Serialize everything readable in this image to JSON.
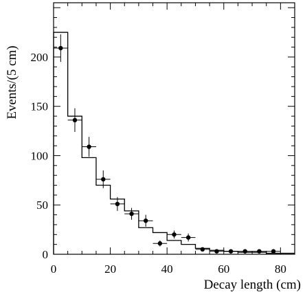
{
  "chart_data": {
    "type": "histogram",
    "xlabel": "Decay length (cm)",
    "ylabel": "Events/(5 cm)",
    "xlim": [
      0,
      85
    ],
    "ylim": [
      0,
      255
    ],
    "x_ticks": [
      0,
      20,
      40,
      60,
      80
    ],
    "x_tick_labels": [
      "0",
      "20",
      "40",
      "60",
      "80"
    ],
    "y_ticks": [
      0,
      50,
      100,
      150,
      200
    ],
    "y_tick_labels": [
      "0",
      "50",
      "100",
      "150",
      "200"
    ],
    "bin_edges": [
      0,
      5,
      10,
      15,
      20,
      25,
      30,
      35,
      40,
      45,
      50,
      55,
      60,
      65,
      70,
      75,
      80,
      85
    ],
    "histogram": [
      225,
      140,
      98,
      70,
      56,
      44,
      27,
      22,
      14,
      10,
      6,
      4,
      3,
      2,
      2,
      1,
      1
    ],
    "data_points": {
      "x": [
        2.5,
        7.5,
        12.5,
        17.5,
        22.5,
        27.5,
        32.5,
        37.5,
        42.5,
        47.5,
        52.5,
        57.5,
        62.5,
        67.5,
        72.5,
        77.5
      ],
      "y": [
        209,
        136,
        109,
        76,
        51,
        41,
        34,
        11,
        20,
        17,
        5,
        3,
        3,
        3,
        3,
        3
      ],
      "yerr": [
        14,
        12,
        10,
        9,
        7,
        6,
        6,
        3,
        4,
        4,
        2,
        1,
        1,
        1,
        1,
        1
      ]
    },
    "grid": false,
    "legend": "none"
  }
}
